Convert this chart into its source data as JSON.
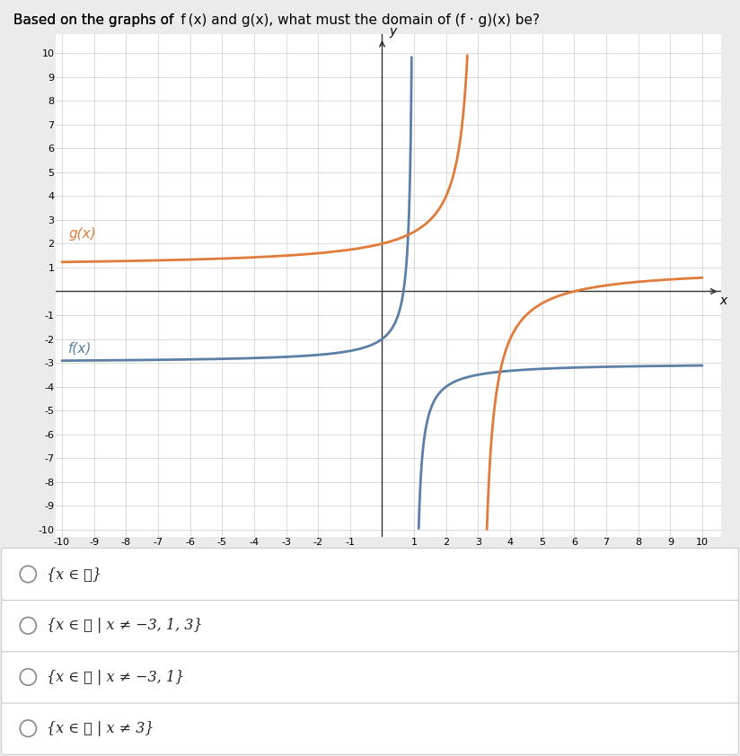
{
  "f_color": "#5b7fa6",
  "g_color": "#e07b39",
  "f_label": "f(x)",
  "g_label": "g(x)",
  "xmin": -10,
  "xmax": 10,
  "ymin": -10,
  "ymax": 10,
  "answer_options": [
    "{x ∈ ℝ | x ≠ 3}",
    "{x ∈ ℝ | x ≠ −3, 1}",
    "{x ∈ ℝ | x ≠ −3, 1, 3}",
    "{x ∈ ℝ}"
  ],
  "bg_color": "#ebebeb",
  "plot_bg_color": "#ffffff",
  "grid_color": "#cccccc",
  "answer_bg_color": "#ffffff",
  "answer_border_color": "#cccccc"
}
